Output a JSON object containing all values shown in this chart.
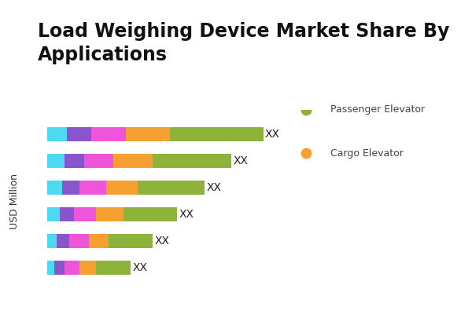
{
  "title": "Load Weighing Device Market Share By\nApplications",
  "ylabel": "USD Million",
  "colors": [
    "#4DD9F0",
    "#8855CC",
    "#EE55D8",
    "#F5A030",
    "#8DB33A"
  ],
  "legend_items": [
    {
      "label": "Passenger Elevator",
      "color": "#8DB33A"
    },
    {
      "label": "Cargo Elevator",
      "color": "#F5A030"
    }
  ],
  "bar_label": "XX",
  "rows": [
    [
      0.08,
      0.1,
      0.14,
      0.18,
      0.38
    ],
    [
      0.07,
      0.08,
      0.12,
      0.16,
      0.32
    ],
    [
      0.06,
      0.07,
      0.11,
      0.13,
      0.27
    ],
    [
      0.05,
      0.06,
      0.09,
      0.11,
      0.22
    ],
    [
      0.04,
      0.05,
      0.08,
      0.08,
      0.18
    ],
    [
      0.03,
      0.04,
      0.06,
      0.07,
      0.14
    ]
  ],
  "background_color": "#FFFFFF",
  "title_fontsize": 17,
  "bar_height": 0.52,
  "xlim": 1.0,
  "label_fontsize": 10,
  "ylabel_fontsize": 9
}
